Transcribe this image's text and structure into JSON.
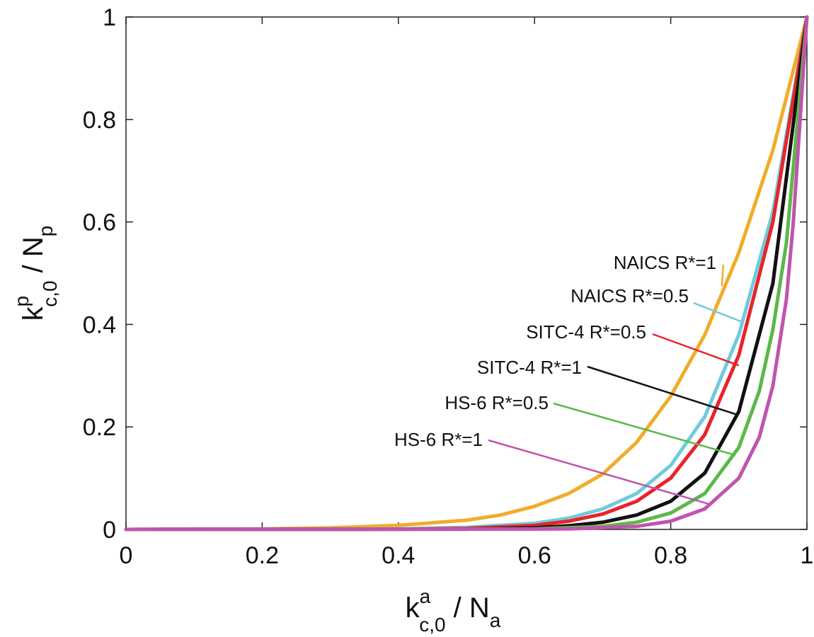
{
  "chart_data": {
    "type": "line",
    "xlim": [
      0,
      1
    ],
    "ylim": [
      0,
      1
    ],
    "xticks": [
      "0",
      "0.2",
      "0.4",
      "0.6",
      "0.8",
      "1"
    ],
    "yticks": [
      "0",
      "0.2",
      "0.4",
      "0.6",
      "0.8",
      "1"
    ],
    "xlabel": {
      "main": "k",
      "sup": "a",
      "sub": "c,0",
      "rest": " / N",
      "rest_sub": "a"
    },
    "ylabel": {
      "main": "k",
      "sup": "p",
      "sub": "c,0",
      "rest": " / N",
      "rest_sub": "p"
    },
    "grid": false,
    "series": [
      {
        "name": "NAICS R*=1",
        "color": "#f0ad2a",
        "label_anchor": [
          0.875,
          0.475
        ],
        "x": [
          0,
          0.2,
          0.3,
          0.4,
          0.5,
          0.55,
          0.6,
          0.65,
          0.7,
          0.75,
          0.8,
          0.85,
          0.9,
          0.95,
          1.0
        ],
        "y": [
          0,
          0.001,
          0.003,
          0.008,
          0.018,
          0.028,
          0.045,
          0.07,
          0.108,
          0.17,
          0.26,
          0.38,
          0.54,
          0.74,
          1.0
        ]
      },
      {
        "name": "NAICS R*=0.5",
        "color": "#6fcbdc",
        "label_anchor": [
          0.905,
          0.405
        ],
        "x": [
          0,
          0.4,
          0.5,
          0.6,
          0.65,
          0.7,
          0.75,
          0.8,
          0.85,
          0.9,
          0.95,
          1.0
        ],
        "y": [
          0,
          0.001,
          0.004,
          0.012,
          0.022,
          0.04,
          0.07,
          0.125,
          0.22,
          0.38,
          0.62,
          1.0
        ]
      },
      {
        "name": "SITC-4 R*=0.5",
        "color": "#e8242a",
        "label_anchor": [
          0.9,
          0.32
        ],
        "x": [
          0,
          0.4,
          0.5,
          0.6,
          0.65,
          0.7,
          0.75,
          0.8,
          0.85,
          0.9,
          0.95,
          1.0
        ],
        "y": [
          0,
          0.0005,
          0.002,
          0.008,
          0.016,
          0.03,
          0.055,
          0.1,
          0.185,
          0.34,
          0.6,
          1.0
        ]
      },
      {
        "name": "SITC-4 R*=1",
        "color": "#111111",
        "label_anchor": [
          0.895,
          0.225
        ],
        "x": [
          0,
          0.5,
          0.6,
          0.65,
          0.7,
          0.75,
          0.8,
          0.85,
          0.9,
          0.95,
          1.0
        ],
        "y": [
          0,
          0.0005,
          0.003,
          0.007,
          0.014,
          0.028,
          0.055,
          0.11,
          0.23,
          0.48,
          1.0
        ]
      },
      {
        "name": "HS-6 R*=0.5",
        "color": "#5ab948",
        "label_anchor": [
          0.895,
          0.145
        ],
        "x": [
          0,
          0.6,
          0.7,
          0.75,
          0.8,
          0.85,
          0.9,
          0.93,
          0.95,
          0.97,
          1.0
        ],
        "y": [
          0,
          0.001,
          0.006,
          0.014,
          0.032,
          0.07,
          0.16,
          0.27,
          0.39,
          0.56,
          1.0
        ]
      },
      {
        "name": "HS-6 R*=1",
        "color": "#c054ad",
        "label_anchor": [
          0.855,
          0.05
        ],
        "x": [
          0,
          0.65,
          0.75,
          0.8,
          0.85,
          0.9,
          0.93,
          0.95,
          0.97,
          0.98,
          1.0
        ],
        "y": [
          0,
          0.001,
          0.006,
          0.016,
          0.04,
          0.1,
          0.18,
          0.28,
          0.45,
          0.6,
          1.0
        ]
      }
    ]
  }
}
